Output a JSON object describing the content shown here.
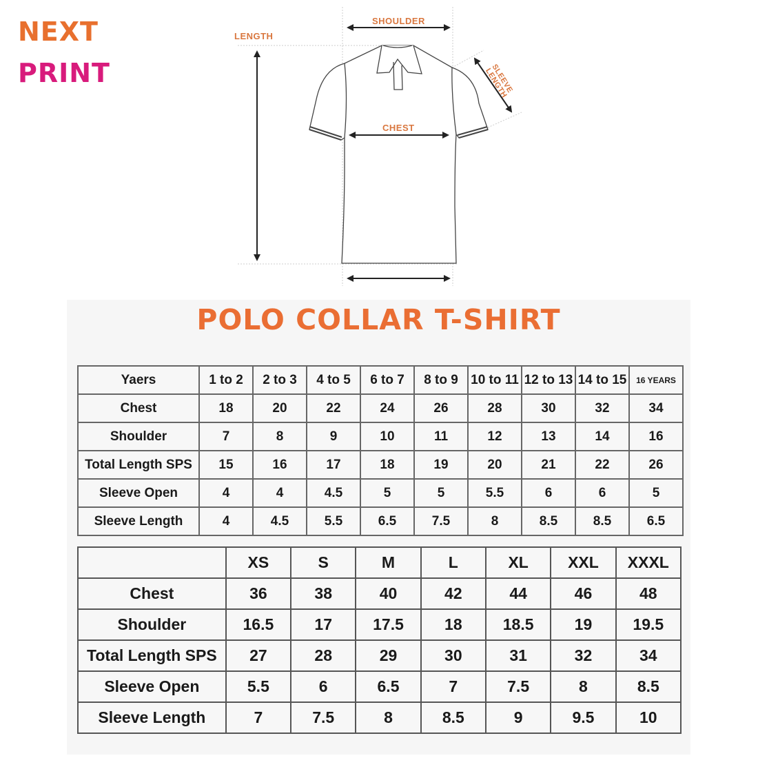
{
  "brand": {
    "line1": "NEXT",
    "line2": "PRINT",
    "colors": {
      "orange": "#e8702e",
      "magenta": "#d81b7c"
    }
  },
  "diagram": {
    "labels": {
      "shoulder": "SHOULDER",
      "length": "LENGTH",
      "sleeve_length_1": "SLEEVE",
      "sleeve_length_2": "LENGTH",
      "chest": "CHEST"
    },
    "label_color": "#d9773f"
  },
  "title": "POLO COLLAR T-SHIRT",
  "kids_table": {
    "header": [
      "Yaers",
      "1 to 2",
      "2 to 3",
      "4 to 5",
      "6 to 7",
      "8 to 9",
      "10 to 11",
      "12 to 13",
      "14 to 15",
      "16 YEARS"
    ],
    "rows": [
      [
        "Chest",
        "18",
        "20",
        "22",
        "24",
        "26",
        "28",
        "30",
        "32",
        "34"
      ],
      [
        "Shoulder",
        "7",
        "8",
        "9",
        "10",
        "11",
        "12",
        "13",
        "14",
        "16"
      ],
      [
        "Total Length SPS",
        "15",
        "16",
        "17",
        "18",
        "19",
        "20",
        "21",
        "22",
        "26"
      ],
      [
        "Sleeve Open",
        "4",
        "4",
        "4.5",
        "5",
        "5",
        "5.5",
        "6",
        "6",
        "5"
      ],
      [
        "Sleeve Length",
        "4",
        "4.5",
        "5.5",
        "6.5",
        "7.5",
        "8",
        "8.5",
        "8.5",
        "6.5"
      ]
    ]
  },
  "adult_table": {
    "header": [
      "",
      "XS",
      "S",
      "M",
      "L",
      "XL",
      "XXL",
      "XXXL"
    ],
    "rows": [
      [
        "Chest",
        "36",
        "38",
        "40",
        "42",
        "44",
        "46",
        "48"
      ],
      [
        "Shoulder",
        "16.5",
        "17",
        "17.5",
        "18",
        "18.5",
        "19",
        "19.5"
      ],
      [
        "Total Length SPS",
        "27",
        "28",
        "29",
        "30",
        "31",
        "32",
        "34"
      ],
      [
        "Sleeve Open",
        "5.5",
        "6",
        "6.5",
        "7",
        "7.5",
        "8",
        "8.5"
      ],
      [
        "Sleeve Length",
        "7",
        "7.5",
        "8",
        "8.5",
        "9",
        "9.5",
        "10"
      ]
    ]
  },
  "title_color": "#ea6e33"
}
